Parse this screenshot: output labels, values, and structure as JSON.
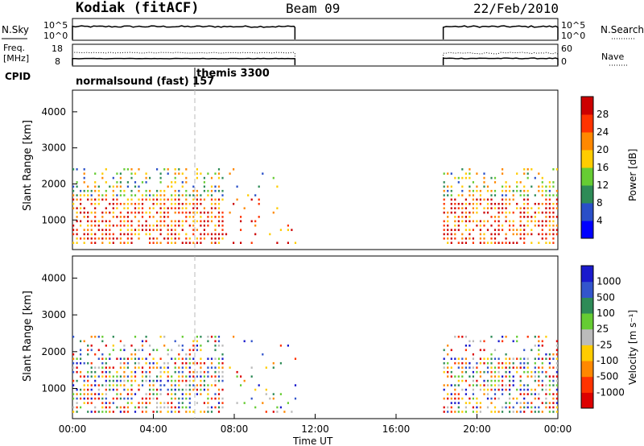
{
  "header": {
    "station": "Kodiak (fitACF)",
    "beam": "Beam 09",
    "date": "22/Feb/2010"
  },
  "panels": {
    "nsky": {
      "label": "N.Sky",
      "ticks": [
        "10^5",
        "10^0"
      ],
      "right_label": "N.Search",
      "right_ticks": [
        "10^5",
        "10^0"
      ]
    },
    "freq": {
      "label_line1": "Freq.",
      "label_line2": "[MHz]",
      "ticks": [
        "18",
        "8"
      ],
      "right_label": "Nave",
      "right_ticks": [
        "60",
        "0"
      ]
    },
    "cpid": {
      "label": "CPID",
      "mode1": "normalsound (fast) 157",
      "mode2": "themis 3300"
    }
  },
  "chart_data": [
    {
      "type": "heatmap",
      "title": "",
      "ylabel": "Slant Range [km]",
      "xlabel": "",
      "x_range_hours": [
        0,
        24
      ],
      "ylim": [
        180,
        4600
      ],
      "yticks": [
        "1000",
        "2000",
        "3000",
        "4000"
      ],
      "data_time_windows_ut": [
        [
          "00:00",
          "11:00"
        ],
        [
          "18:20",
          "24:00"
        ]
      ],
      "colorbar": {
        "label": "Power [dB]",
        "ticks": [
          "4",
          "8",
          "12",
          "16",
          "20",
          "24",
          "28"
        ],
        "range": [
          0,
          30
        ],
        "colors": [
          "#0000ff",
          "#2a4fc8",
          "#2e8b57",
          "#66cc33",
          "#ffcc00",
          "#ff8800",
          "#ff3300",
          "#cc0000"
        ]
      }
    },
    {
      "type": "heatmap",
      "title": "",
      "ylabel": "Slant Range [km]",
      "xlabel": "Time UT",
      "x_range_hours": [
        0,
        24
      ],
      "xticks": [
        "00:00",
        "04:00",
        "08:00",
        "12:00",
        "16:00",
        "20:00",
        "00:00"
      ],
      "ylim": [
        180,
        4600
      ],
      "yticks": [
        "1000",
        "2000",
        "3000",
        "4000"
      ],
      "data_time_windows_ut": [
        [
          "00:00",
          "11:00"
        ],
        [
          "18:20",
          "24:00"
        ]
      ],
      "colorbar": {
        "label": "Velocity [m s⁻¹]",
        "ticks": [
          "1000",
          "500",
          "100",
          "25",
          "-25",
          "-100",
          "-500",
          "-1000"
        ],
        "colors": [
          "#1a1acc",
          "#3355cc",
          "#2e8b57",
          "#66cc33",
          "#bbbbbb",
          "#ffcc00",
          "#ff8800",
          "#ff3300",
          "#dd0000"
        ]
      }
    }
  ]
}
